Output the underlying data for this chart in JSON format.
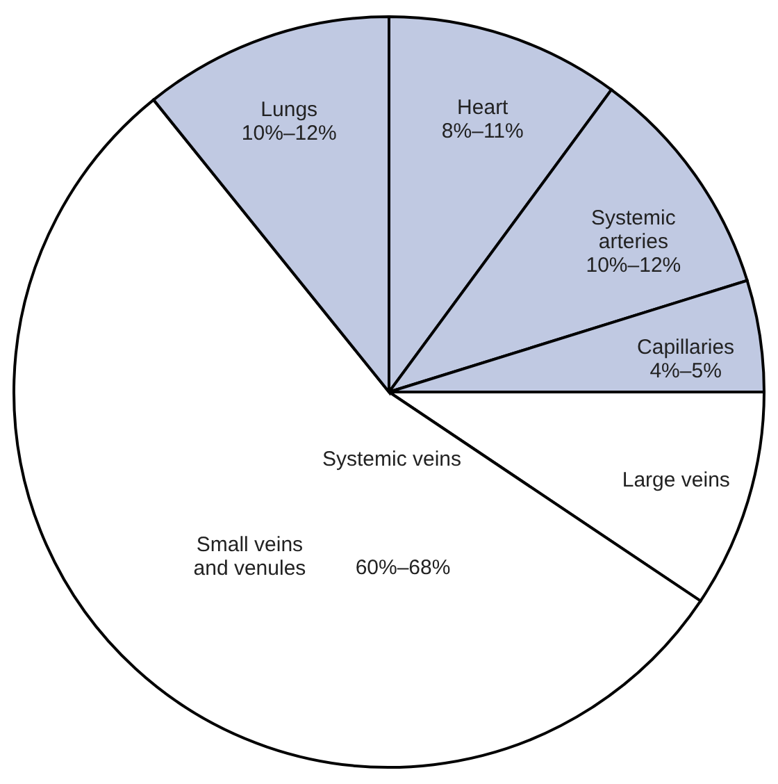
{
  "chart_data": {
    "type": "pie",
    "categories": [
      "Heart",
      "Systemic arteries",
      "Capillaries",
      "Large veins",
      "Small veins and venules",
      "Lungs"
    ],
    "values": [
      10.1,
      10.1,
      4.8,
      9.4,
      54.8,
      10.8
    ],
    "colors": [
      "#c0c9e2",
      "#c0c9e2",
      "#c0c9e2",
      "#ffffff",
      "#ffffff",
      "#c0c9e2"
    ],
    "annotations": [
      {
        "text": "8%–11%",
        "x": "Heart"
      },
      {
        "text": "10%–12%",
        "x": "Systemic arteries"
      },
      {
        "text": "4%–5%",
        "x": "Capillaries"
      },
      {
        "text": "10%–12%",
        "x": "Lungs"
      },
      "Systemic veins",
      "60%–68%"
    ]
  }
}
